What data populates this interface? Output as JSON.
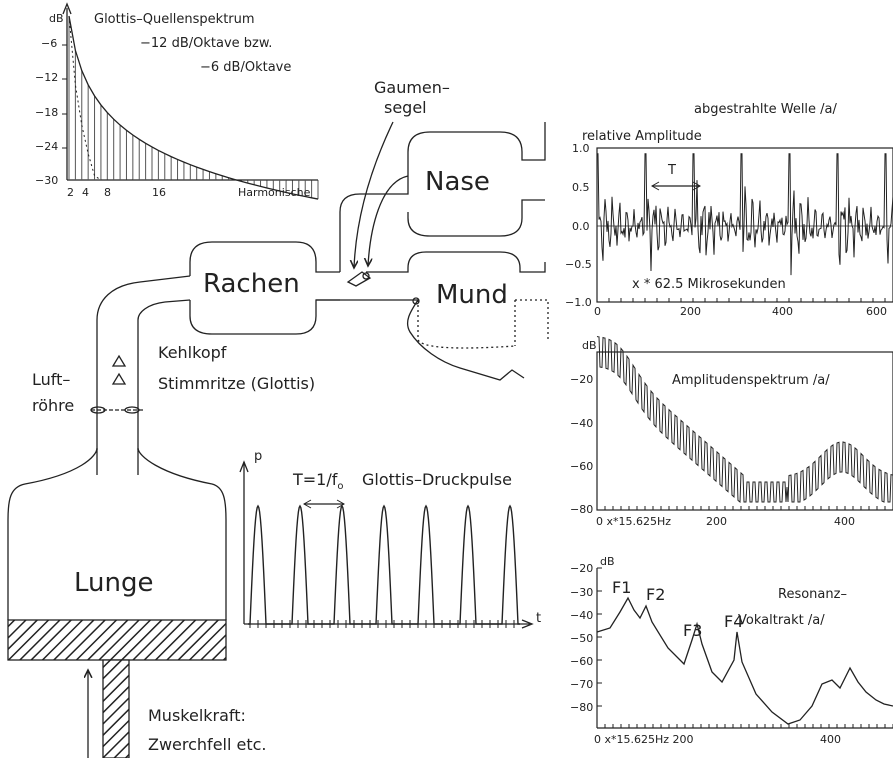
{
  "source_spectrum": {
    "title": "Glottis–Quellenspektrum",
    "line2": "−12 dB/Oktave   bzw.",
    "line3": "−6 dB/Oktave",
    "y_unit": "dB",
    "y_ticks": [
      "−6",
      "−12",
      "−18",
      "−24",
      "−30"
    ],
    "x_ticks": [
      "2",
      "4",
      "8",
      "16"
    ],
    "x_label": "Harmonische"
  },
  "anatomy": {
    "lunge": "Lunge",
    "rachen": "Rachen",
    "nase": "Nase",
    "mund": "Mund",
    "gaumensegel_1": "Gaumen–",
    "gaumensegel_2": "segel",
    "kehlkopf": "Kehlkopf",
    "stimmritze": "Stimmritze (Glottis)",
    "luftroehre_1": "Luft–",
    "luftroehre_2": "röhre",
    "muskel_1": "Muskelkraft:",
    "muskel_2": "Zwerchfell etc."
  },
  "pulses": {
    "title": "Glottis–Druckpulse",
    "p_label": "p",
    "t_label": "t",
    "period": "T=1/f",
    "period_sub": "o"
  },
  "waveform": {
    "title": "abgestrahlte Welle /a/",
    "ylabel": "relative Amplitude",
    "period_label": "T",
    "xlabel": "x * 62.5 Mikrosekunden",
    "y_ticks": [
      "1.0",
      "0.5",
      "0.0",
      "−0.5",
      "−1.0"
    ],
    "x_ticks": [
      "0",
      "200",
      "400",
      "600"
    ]
  },
  "amp_spectrum": {
    "title": "Amplitudenspektrum /a/",
    "unit": "dB",
    "y_ticks": [
      "−20",
      "−40",
      "−60",
      "−80"
    ],
    "x_ticks": [
      "0 x*15.625Hz",
      "200",
      "400"
    ]
  },
  "resonance": {
    "title1": "Resonanz–",
    "title2": "Vokaltrakt /a/",
    "unit": "dB",
    "y_ticks": [
      "−20",
      "−30",
      "−40",
      "−50",
      "−60",
      "−70",
      "−80"
    ],
    "x_ticks": [
      "0 x*15.625Hz 200",
      "400"
    ],
    "formants": [
      "F1",
      "F2",
      "F3",
      "F4"
    ]
  }
}
